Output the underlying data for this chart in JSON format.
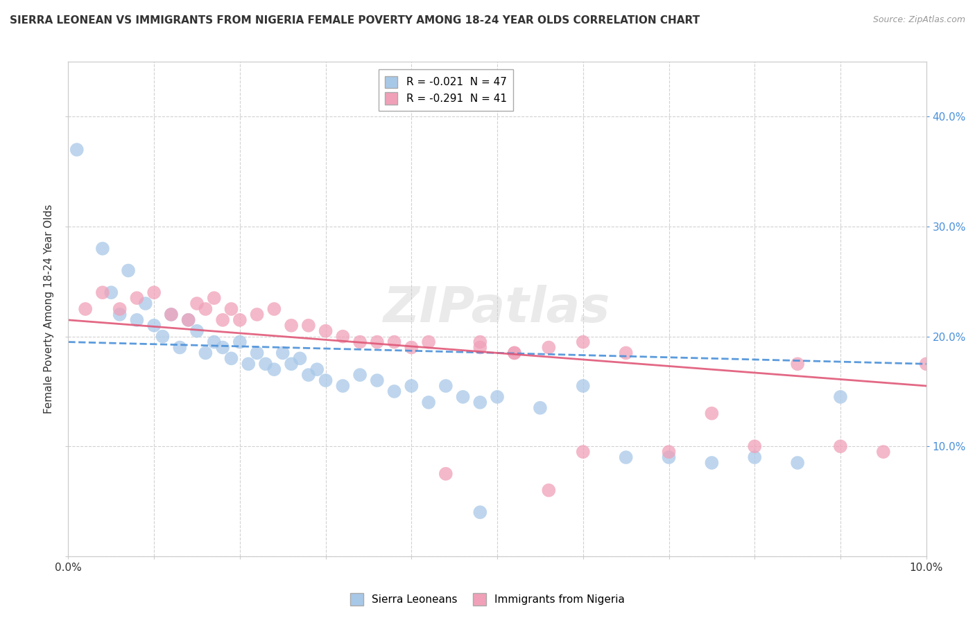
{
  "title": "SIERRA LEONEAN VS IMMIGRANTS FROM NIGERIA FEMALE POVERTY AMONG 18-24 YEAR OLDS CORRELATION CHART",
  "source": "Source: ZipAtlas.com",
  "ylabel": "Female Poverty Among 18-24 Year Olds",
  "legend_entries": [
    {
      "label": "R = -0.021  N = 47",
      "color": "#a8c8e8"
    },
    {
      "label": "R = -0.291  N = 41",
      "color": "#f0a0b8"
    }
  ],
  "sierra_x": [
    0.001,
    0.004,
    0.005,
    0.006,
    0.007,
    0.008,
    0.009,
    0.01,
    0.011,
    0.012,
    0.013,
    0.014,
    0.015,
    0.016,
    0.017,
    0.018,
    0.019,
    0.02,
    0.021,
    0.022,
    0.023,
    0.024,
    0.025,
    0.026,
    0.027,
    0.028,
    0.029,
    0.03,
    0.032,
    0.034,
    0.036,
    0.038,
    0.04,
    0.042,
    0.044,
    0.046,
    0.048,
    0.05,
    0.055,
    0.06,
    0.065,
    0.07,
    0.075,
    0.08,
    0.085,
    0.09,
    0.048
  ],
  "sierra_y": [
    0.37,
    0.28,
    0.24,
    0.22,
    0.26,
    0.215,
    0.23,
    0.21,
    0.2,
    0.22,
    0.19,
    0.215,
    0.205,
    0.185,
    0.195,
    0.19,
    0.18,
    0.195,
    0.175,
    0.185,
    0.175,
    0.17,
    0.185,
    0.175,
    0.18,
    0.165,
    0.17,
    0.16,
    0.155,
    0.165,
    0.16,
    0.15,
    0.155,
    0.14,
    0.155,
    0.145,
    0.14,
    0.145,
    0.135,
    0.155,
    0.09,
    0.09,
    0.085,
    0.09,
    0.085,
    0.145,
    0.04
  ],
  "nigeria_x": [
    0.002,
    0.004,
    0.006,
    0.008,
    0.01,
    0.012,
    0.014,
    0.015,
    0.016,
    0.017,
    0.018,
    0.019,
    0.02,
    0.022,
    0.024,
    0.026,
    0.028,
    0.03,
    0.032,
    0.034,
    0.036,
    0.038,
    0.04,
    0.042,
    0.044,
    0.048,
    0.052,
    0.056,
    0.06,
    0.065,
    0.07,
    0.075,
    0.08,
    0.085,
    0.09,
    0.095,
    0.1,
    0.048,
    0.052,
    0.056,
    0.06
  ],
  "nigeria_y": [
    0.225,
    0.24,
    0.225,
    0.235,
    0.24,
    0.22,
    0.215,
    0.23,
    0.225,
    0.235,
    0.215,
    0.225,
    0.215,
    0.22,
    0.225,
    0.21,
    0.21,
    0.205,
    0.2,
    0.195,
    0.195,
    0.195,
    0.19,
    0.195,
    0.075,
    0.195,
    0.185,
    0.19,
    0.195,
    0.185,
    0.095,
    0.13,
    0.1,
    0.175,
    0.1,
    0.095,
    0.175,
    0.19,
    0.185,
    0.06,
    0.095
  ],
  "xlim": [
    0.0,
    0.1
  ],
  "ylim": [
    0.0,
    0.45
  ],
  "xticks": [
    0.0,
    0.01,
    0.02,
    0.03,
    0.04,
    0.05,
    0.06,
    0.07,
    0.08,
    0.09,
    0.1
  ],
  "yticks": [
    0.0,
    0.1,
    0.2,
    0.3,
    0.4
  ],
  "watermark": "ZIPatlas",
  "sierra_color": "#a8c8e8",
  "nigeria_color": "#f0a0b8",
  "sierra_line_color": "#4a90d9",
  "nigeria_line_color": "#e05878",
  "background_color": "#ffffff",
  "grid_color": "#cccccc",
  "bottom_legend": [
    "Sierra Leoneans",
    "Immigrants from Nigeria"
  ]
}
